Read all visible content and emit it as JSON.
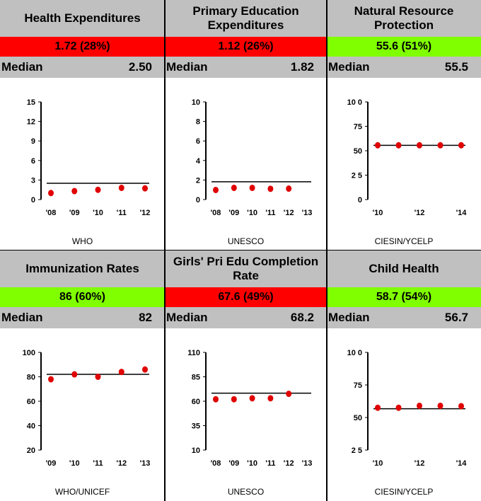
{
  "colors": {
    "red": "#ff0000",
    "green": "#80ff00",
    "gray": "#c0c0c0",
    "point": "#e00000"
  },
  "panels": [
    {
      "title": "Health Expenditures",
      "score": "1.72 (28%)",
      "score_status": "red",
      "median_label": "Median",
      "median_value": "2.50",
      "source": "WHO",
      "chart_data": {
        "type": "scatter",
        "x": [
          "'08",
          "'09",
          "'10",
          "'11",
          "'12"
        ],
        "y": [
          1.0,
          1.3,
          1.5,
          1.8,
          1.72
        ],
        "median": 2.5,
        "yticks": [
          0,
          3,
          6,
          9,
          12,
          15
        ],
        "ytick_labels": [
          "0",
          "3",
          "6",
          "9",
          "12",
          "15"
        ],
        "ylim": [
          0,
          15
        ],
        "xtick_labels": [
          "'08",
          "'09",
          "'10",
          "'11",
          "'12"
        ],
        "median_extent": [
          0,
          4
        ]
      }
    },
    {
      "title": "Primary Education Expenditures",
      "score": "1.12 (26%)",
      "score_status": "red",
      "median_label": "Median",
      "median_value": "1.82",
      "source": "UNESCO",
      "chart_data": {
        "type": "scatter",
        "x": [
          "'08",
          "'09",
          "'10",
          "'11",
          "'12",
          "'13"
        ],
        "y": [
          0.98,
          1.2,
          1.2,
          1.1,
          1.12,
          null
        ],
        "median": 1.82,
        "yticks": [
          0,
          2,
          4,
          6,
          8,
          10
        ],
        "ytick_labels": [
          "0",
          "2",
          "4",
          "6",
          "8",
          "10"
        ],
        "ylim": [
          0,
          10
        ],
        "xtick_labels": [
          "'08",
          "'09",
          "'10",
          "'11",
          "'12",
          "'13"
        ],
        "median_extent": [
          0,
          5
        ]
      }
    },
    {
      "title": "Natural Resource Protection",
      "score": "55.6 (51%)",
      "score_status": "green",
      "median_label": "Median",
      "median_value": "55.5",
      "source": "CIESIN/YCELP",
      "chart_data": {
        "type": "scatter",
        "x": [
          "'10",
          "'11",
          "'12",
          "'13",
          "'14"
        ],
        "y": [
          55.6,
          55.6,
          55.6,
          55.6,
          55.6
        ],
        "median": 55.5,
        "yticks": [
          0,
          25,
          50,
          75,
          100
        ],
        "ytick_labels": [
          "0",
          "2 5",
          "50",
          "75",
          "10 0"
        ],
        "ylim": [
          0,
          100
        ],
        "xtick_labels": [
          "'10",
          "",
          "'12",
          "",
          "'14"
        ],
        "median_extent": [
          0,
          4
        ]
      }
    },
    {
      "title": "Immunization Rates",
      "score": "86 (60%)",
      "score_status": "green",
      "median_label": "Median",
      "median_value": "82",
      "source": "WHO/UNICEF",
      "chart_data": {
        "type": "scatter",
        "x": [
          "'09",
          "'10",
          "'11",
          "'12",
          "'13"
        ],
        "y": [
          78,
          82,
          80,
          84,
          86
        ],
        "median": 82,
        "yticks": [
          20,
          40,
          60,
          80,
          100
        ],
        "ytick_labels": [
          "20",
          "40",
          "60",
          "80",
          "100"
        ],
        "ylim": [
          20,
          100
        ],
        "xtick_labels": [
          "'09",
          "'10",
          "'11",
          "'12",
          "'13"
        ],
        "median_extent": [
          0,
          4
        ]
      }
    },
    {
      "title": "Girls' Pri Edu Completion Rate",
      "score": "67.6 (49%)",
      "score_status": "red",
      "median_label": "Median",
      "median_value": "68.2",
      "source": "UNESCO",
      "chart_data": {
        "type": "scatter",
        "x": [
          "'08",
          "'09",
          "'10",
          "'11",
          "'12",
          "'13"
        ],
        "y": [
          62,
          62,
          63,
          63,
          67.6,
          null
        ],
        "median": 68.2,
        "yticks": [
          10,
          35,
          60,
          85,
          110
        ],
        "ytick_labels": [
          "10",
          "35",
          "60",
          "85",
          "110"
        ],
        "ylim": [
          10,
          110
        ],
        "xtick_labels": [
          "'08",
          "'09",
          "'10",
          "'11",
          "'12",
          "'13"
        ],
        "median_extent": [
          0,
          5
        ]
      }
    },
    {
      "title": "Child Health",
      "score": "58.7 (54%)",
      "score_status": "green",
      "median_label": "Median",
      "median_value": "56.7",
      "source": "CIESIN/YCELP",
      "chart_data": {
        "type": "scatter",
        "x": [
          "'10",
          "'11",
          "'12",
          "'13",
          "'14"
        ],
        "y": [
          57.5,
          57.5,
          59,
          59,
          58.7
        ],
        "median": 56.7,
        "yticks": [
          25,
          50,
          75,
          100
        ],
        "ytick_labels": [
          "2 5",
          "50",
          "75",
          "10 0"
        ],
        "ylim": [
          25,
          100
        ],
        "xtick_labels": [
          "'10",
          "",
          "'12",
          "",
          "'14"
        ],
        "median_extent": [
          0,
          4
        ]
      }
    }
  ]
}
